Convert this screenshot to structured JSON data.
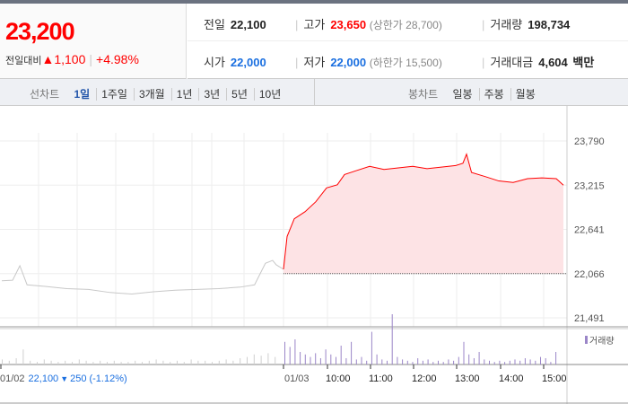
{
  "summary": {
    "price": "23,200",
    "change_label": "전일대비",
    "change_icon": "up-triangle",
    "change": "1,100",
    "percent": "+4.98%"
  },
  "info": {
    "prev_label": "전일",
    "prev": "22,100",
    "high_label": "고가",
    "high": "23,650",
    "upper_limit": "(상한가 28,700)",
    "volume_label": "거래량",
    "volume": "198,734",
    "open_label": "시가",
    "open": "22,000",
    "low_label": "저가",
    "low": "22,000",
    "lower_limit": "(하한가 15,500)",
    "amount_label": "거래대금",
    "amount": "4,604",
    "amount_unit": "백만"
  },
  "tabs": {
    "line_label": "선차트",
    "line": [
      "1일",
      "1주일",
      "3개월",
      "1년",
      "3년",
      "5년",
      "10년"
    ],
    "active": "1일",
    "candle_label": "봉차트",
    "candle": [
      "일봉",
      "주봉",
      "월봉"
    ]
  },
  "colors": {
    "up": "#ff0000",
    "down": "#1a6fe0",
    "prev_line": "#c8c8c8",
    "volume": "#9b86c8"
  },
  "chart_data": {
    "type": "line",
    "yticks": [
      "23,790",
      "23,215",
      "22,641",
      "22,066",
      "21,491"
    ],
    "ylim": [
      21491,
      23790
    ],
    "base_price": 22066,
    "prev_day": {
      "date": "01/02",
      "close": "22,100",
      "change": "250",
      "change_icon": "down-triangle",
      "percent": "(-1.12%)",
      "points": [
        [
          "09:00",
          21973
        ],
        [
          "09:15",
          21980
        ],
        [
          "09:25",
          22168
        ],
        [
          "09:35",
          21920
        ],
        [
          "10:00",
          21900
        ],
        [
          "10:30",
          21870
        ],
        [
          "11:00",
          21860
        ],
        [
          "11:30",
          21820
        ],
        [
          "12:00",
          21800
        ],
        [
          "12:30",
          21830
        ],
        [
          "13:00",
          21850
        ],
        [
          "13:30",
          21860
        ],
        [
          "14:00",
          21870
        ],
        [
          "14:30",
          21890
        ],
        [
          "14:50",
          21920
        ],
        [
          "15:05",
          22200
        ],
        [
          "15:15",
          22237
        ],
        [
          "15:20",
          22180
        ],
        [
          "15:30",
          22122
        ]
      ]
    },
    "today": {
      "date": "01/03",
      "xticks": [
        "10:00",
        "11:00",
        "12:00",
        "13:00",
        "14:00",
        "15:00"
      ],
      "points": [
        [
          "09:00",
          22122
        ],
        [
          "09:05",
          22548
        ],
        [
          "09:15",
          22778
        ],
        [
          "09:30",
          22870
        ],
        [
          "09:45",
          23000
        ],
        [
          "10:00",
          23180
        ],
        [
          "10:15",
          23220
        ],
        [
          "10:25",
          23353
        ],
        [
          "10:40",
          23400
        ],
        [
          "11:00",
          23460
        ],
        [
          "11:20",
          23420
        ],
        [
          "11:40",
          23440
        ],
        [
          "12:00",
          23460
        ],
        [
          "12:20",
          23430
        ],
        [
          "12:40",
          23450
        ],
        [
          "13:00",
          23470
        ],
        [
          "13:10",
          23500
        ],
        [
          "13:15",
          23618
        ],
        [
          "13:22",
          23380
        ],
        [
          "13:40",
          23330
        ],
        [
          "14:00",
          23270
        ],
        [
          "14:20",
          23250
        ],
        [
          "14:40",
          23300
        ],
        [
          "15:00",
          23310
        ],
        [
          "15:20",
          23300
        ],
        [
          "15:30",
          23215
        ]
      ]
    },
    "volume_legend": "거래량",
    "volume_prev": [
      4,
      3,
      5,
      12,
      3,
      2,
      4,
      3,
      2,
      3,
      2,
      4,
      3,
      2,
      3,
      2,
      3,
      2,
      2,
      3,
      2,
      3,
      4,
      3,
      2,
      3,
      2,
      4,
      3,
      3,
      2,
      3,
      4,
      3,
      5,
      6,
      8,
      7,
      9,
      6
    ],
    "volume_today": [
      18,
      14,
      20,
      10,
      8,
      6,
      9,
      5,
      12,
      8,
      6,
      15,
      5,
      18,
      4,
      6,
      3,
      26,
      8,
      4,
      3,
      40,
      6,
      4,
      3,
      2,
      5,
      3,
      4,
      2,
      3,
      2,
      4,
      3,
      6,
      18,
      8,
      5,
      10,
      4,
      3,
      2,
      3,
      2,
      3,
      4,
      3,
      5,
      4,
      3,
      6,
      5,
      2,
      10
    ]
  }
}
